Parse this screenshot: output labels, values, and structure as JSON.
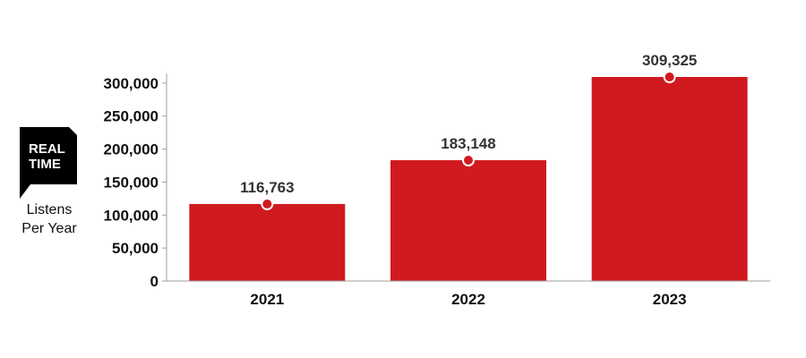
{
  "logo": {
    "line1": "REAL",
    "line2": "TIME"
  },
  "y_axis_label": {
    "line1": "Listens",
    "line2": "Per Year"
  },
  "colors": {
    "bar": "#d01a1f",
    "marker_fill": "#d01a1f",
    "marker_stroke": "#ffffff",
    "axis": "#9e9e9e",
    "logo_bg": "#000000",
    "logo_text": "#ffffff"
  },
  "chart_data": {
    "type": "bar",
    "categories": [
      "2021",
      "2022",
      "2023"
    ],
    "values": [
      116763,
      183148,
      309325
    ],
    "data_labels": [
      "116,763",
      "183,148",
      "309,325"
    ],
    "ylabel": "Listens Per Year",
    "ylim": [
      0,
      309325
    ],
    "yticks": [
      0,
      50000,
      100000,
      150000,
      200000,
      250000,
      300000
    ],
    "ytick_labels": [
      "0",
      "50,000",
      "100,000",
      "150,000",
      "200,000",
      "250,000",
      "300,000"
    ],
    "grid": false,
    "legend": "none"
  }
}
